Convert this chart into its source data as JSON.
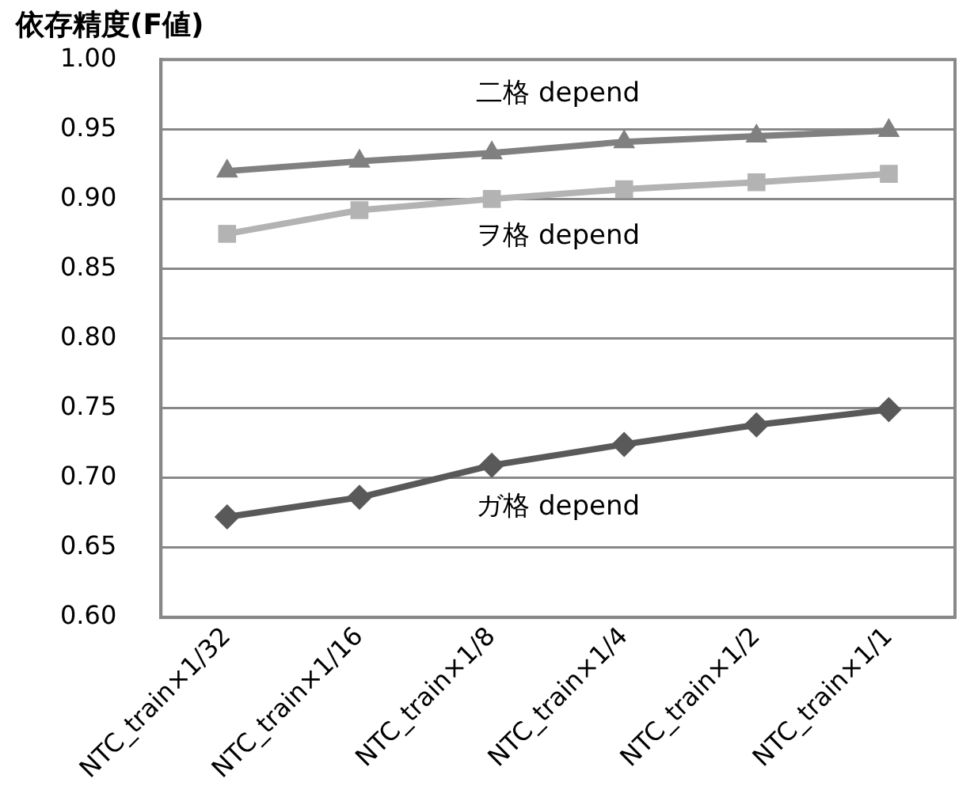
{
  "chart_data": {
    "type": "line",
    "title": "依存精度(F値)",
    "categories": [
      "NTC_train×1/32",
      "NTC_train×1/16",
      "NTC_train×1/8",
      "NTC_train×1/4",
      "NTC_train×1/2",
      "NTC_train×1/1"
    ],
    "series": [
      {
        "name": "二格 depend",
        "color": "#808080",
        "marker": "triangle",
        "values": [
          0.92,
          0.927,
          0.933,
          0.941,
          0.945,
          0.949
        ]
      },
      {
        "name": "ヲ格 depend",
        "color": "#b3b3b3",
        "marker": "square",
        "values": [
          0.875,
          0.892,
          0.9,
          0.907,
          0.912,
          0.918
        ]
      },
      {
        "name": "ガ格 depend",
        "color": "#595959",
        "marker": "diamond",
        "values": [
          0.672,
          0.686,
          0.709,
          0.724,
          0.738,
          0.749
        ]
      }
    ],
    "ylim": [
      0.6,
      1.0
    ],
    "yticks": [
      {
        "value": 0.6,
        "label": "0.60"
      },
      {
        "value": 0.65,
        "label": "0.65"
      },
      {
        "value": 0.7,
        "label": "0.70"
      },
      {
        "value": 0.75,
        "label": "0.75"
      },
      {
        "value": 0.8,
        "label": "0.80"
      },
      {
        "value": 0.85,
        "label": "0.85"
      },
      {
        "value": 0.9,
        "label": "0.90"
      },
      {
        "value": 0.95,
        "label": "0.95"
      },
      {
        "value": 1.0,
        "label": "1.00"
      }
    ],
    "grid": "y",
    "legend": false,
    "line_style": "solid"
  }
}
